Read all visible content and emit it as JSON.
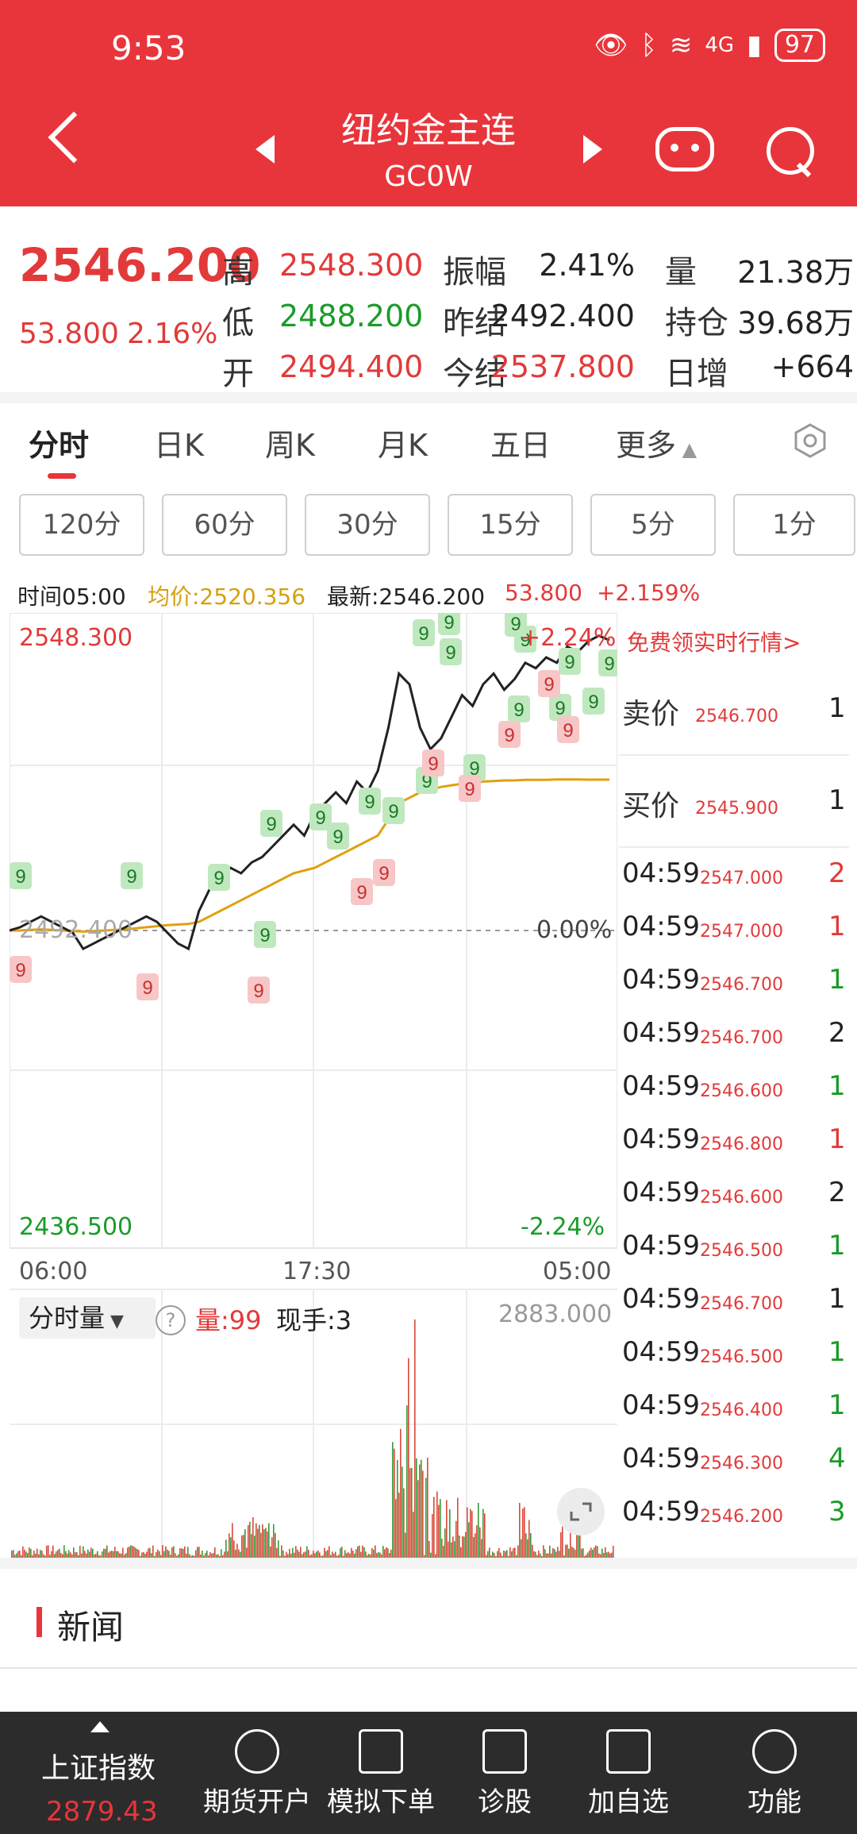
{
  "status": {
    "time": "9:53",
    "battery": "97",
    "network": "4G"
  },
  "header": {
    "title": "纽约金主连",
    "subtitle": "GC0W"
  },
  "quote": {
    "price": "2546.200",
    "change": "53.800",
    "change_pct": "2.16%",
    "fields": [
      {
        "label": "高",
        "value": "2548.300",
        "color": "red"
      },
      {
        "label": "低",
        "value": "2488.200",
        "color": "green"
      },
      {
        "label": "开",
        "value": "2494.400",
        "color": "red"
      },
      {
        "label": "振幅",
        "value": "2.41%",
        "color": "dark"
      },
      {
        "label": "昨结",
        "value": "2492.400",
        "color": "dark"
      },
      {
        "label": "今结",
        "value": "2537.800",
        "color": "red"
      },
      {
        "label": "量",
        "value": "21.38万",
        "color": "dark"
      },
      {
        "label": "持仓",
        "value": "39.68万",
        "color": "dark"
      },
      {
        "label": "日增",
        "value": "+664",
        "color": "dark"
      }
    ]
  },
  "tabs": [
    "分时",
    "日K",
    "周K",
    "月K",
    "五日",
    "更多"
  ],
  "periods": [
    "120分",
    "60分",
    "30分",
    "15分",
    "5分",
    "1分"
  ],
  "info": {
    "time": "时间05:00",
    "avg": "均价:2520.356",
    "latest": "最新:2546.200",
    "chg": "53.800",
    "pct": "+2.159%"
  },
  "chart_labels": {
    "high": "2548.300",
    "low": "2436.500",
    "mid": "2492.400",
    "pct_high": "+2.24%",
    "pct_mid": "0.00%",
    "pct_low": "-2.24%",
    "times": [
      "06:00",
      "17:30",
      "05:00"
    ],
    "marker": "9"
  },
  "chart_data": {
    "type": "line",
    "ylim": [
      2436.5,
      2548.3
    ],
    "series": [
      {
        "values": [
          2492.4,
          2493,
          2494,
          2495,
          2494,
          2493,
          2492,
          2489,
          2490,
          2491,
          2492,
          2493,
          2494,
          2495,
          2494,
          2492,
          2490,
          2489,
          2496,
          2500,
          2502,
          2504,
          2503,
          2505,
          2506,
          2508,
          2510,
          2512,
          2510,
          2514,
          2516,
          2518,
          2516,
          2520,
          2518,
          2522,
          2530,
          2540,
          2538,
          2530,
          2526,
          2528,
          2532,
          2536,
          2534,
          2538,
          2540,
          2537,
          2539,
          2542,
          2541,
          2543,
          2542,
          2545,
          2544,
          2546,
          2547,
          2546.2
        ]
      },
      {
        "values": [
          2492.4,
          2492.4,
          2492.5,
          2492.6,
          2492.5,
          2492.4,
          2492.3,
          2492.2,
          2492.3,
          2492.4,
          2492.5,
          2492.6,
          2492.8,
          2493,
          2493.2,
          2493.4,
          2493.5,
          2493.6,
          2494,
          2495,
          2496,
          2497,
          2498,
          2499,
          2500,
          2501,
          2502,
          2503,
          2503.5,
          2504,
          2505,
          2506,
          2507,
          2508,
          2509,
          2510,
          2513,
          2516,
          2517,
          2518,
          2518.5,
          2519,
          2519.3,
          2519.6,
          2519.8,
          2520,
          2520.1,
          2520.2,
          2520.2,
          2520.3,
          2520.3,
          2520.3,
          2520.4,
          2520.4,
          2520.4,
          2520.35,
          2520.35,
          2520.356
        ]
      }
    ]
  },
  "volume": {
    "label": "分时量",
    "help": "?",
    "qty": "量:99",
    "now": "现手:3",
    "max": "2883.000"
  },
  "order_panel": {
    "banner": "免费领实时行情>",
    "sell": {
      "label": "卖价",
      "price": "2546.700",
      "vol": "1"
    },
    "buy": {
      "label": "买价",
      "price": "2545.900",
      "vol": "1"
    },
    "ticks": [
      {
        "time": "04:59",
        "price": "2547.000",
        "vol": "2",
        "color": "red"
      },
      {
        "time": "04:59",
        "price": "2547.000",
        "vol": "1",
        "color": "red"
      },
      {
        "time": "04:59",
        "price": "2546.700",
        "vol": "1",
        "color": "green"
      },
      {
        "time": "04:59",
        "price": "2546.700",
        "vol": "2",
        "color": "dark"
      },
      {
        "time": "04:59",
        "price": "2546.600",
        "vol": "1",
        "color": "green"
      },
      {
        "time": "04:59",
        "price": "2546.800",
        "vol": "1",
        "color": "red"
      },
      {
        "time": "04:59",
        "price": "2546.600",
        "vol": "2",
        "color": "dark"
      },
      {
        "time": "04:59",
        "price": "2546.500",
        "vol": "1",
        "color": "green"
      },
      {
        "time": "04:59",
        "price": "2546.700",
        "vol": "1",
        "color": "dark"
      },
      {
        "time": "04:59",
        "price": "2546.500",
        "vol": "1",
        "color": "green"
      },
      {
        "time": "04:59",
        "price": "2546.400",
        "vol": "1",
        "color": "green"
      },
      {
        "time": "04:59",
        "price": "2546.300",
        "vol": "4",
        "color": "green"
      },
      {
        "time": "04:59",
        "price": "2546.200",
        "vol": "3",
        "color": "green"
      }
    ]
  },
  "news": {
    "title": "新闻"
  },
  "bottom_nav": {
    "index_label": "上证指数",
    "index_value": "2879.43",
    "items": [
      "期货开户",
      "模拟下单",
      "诊股",
      "加自选",
      "功能"
    ]
  }
}
